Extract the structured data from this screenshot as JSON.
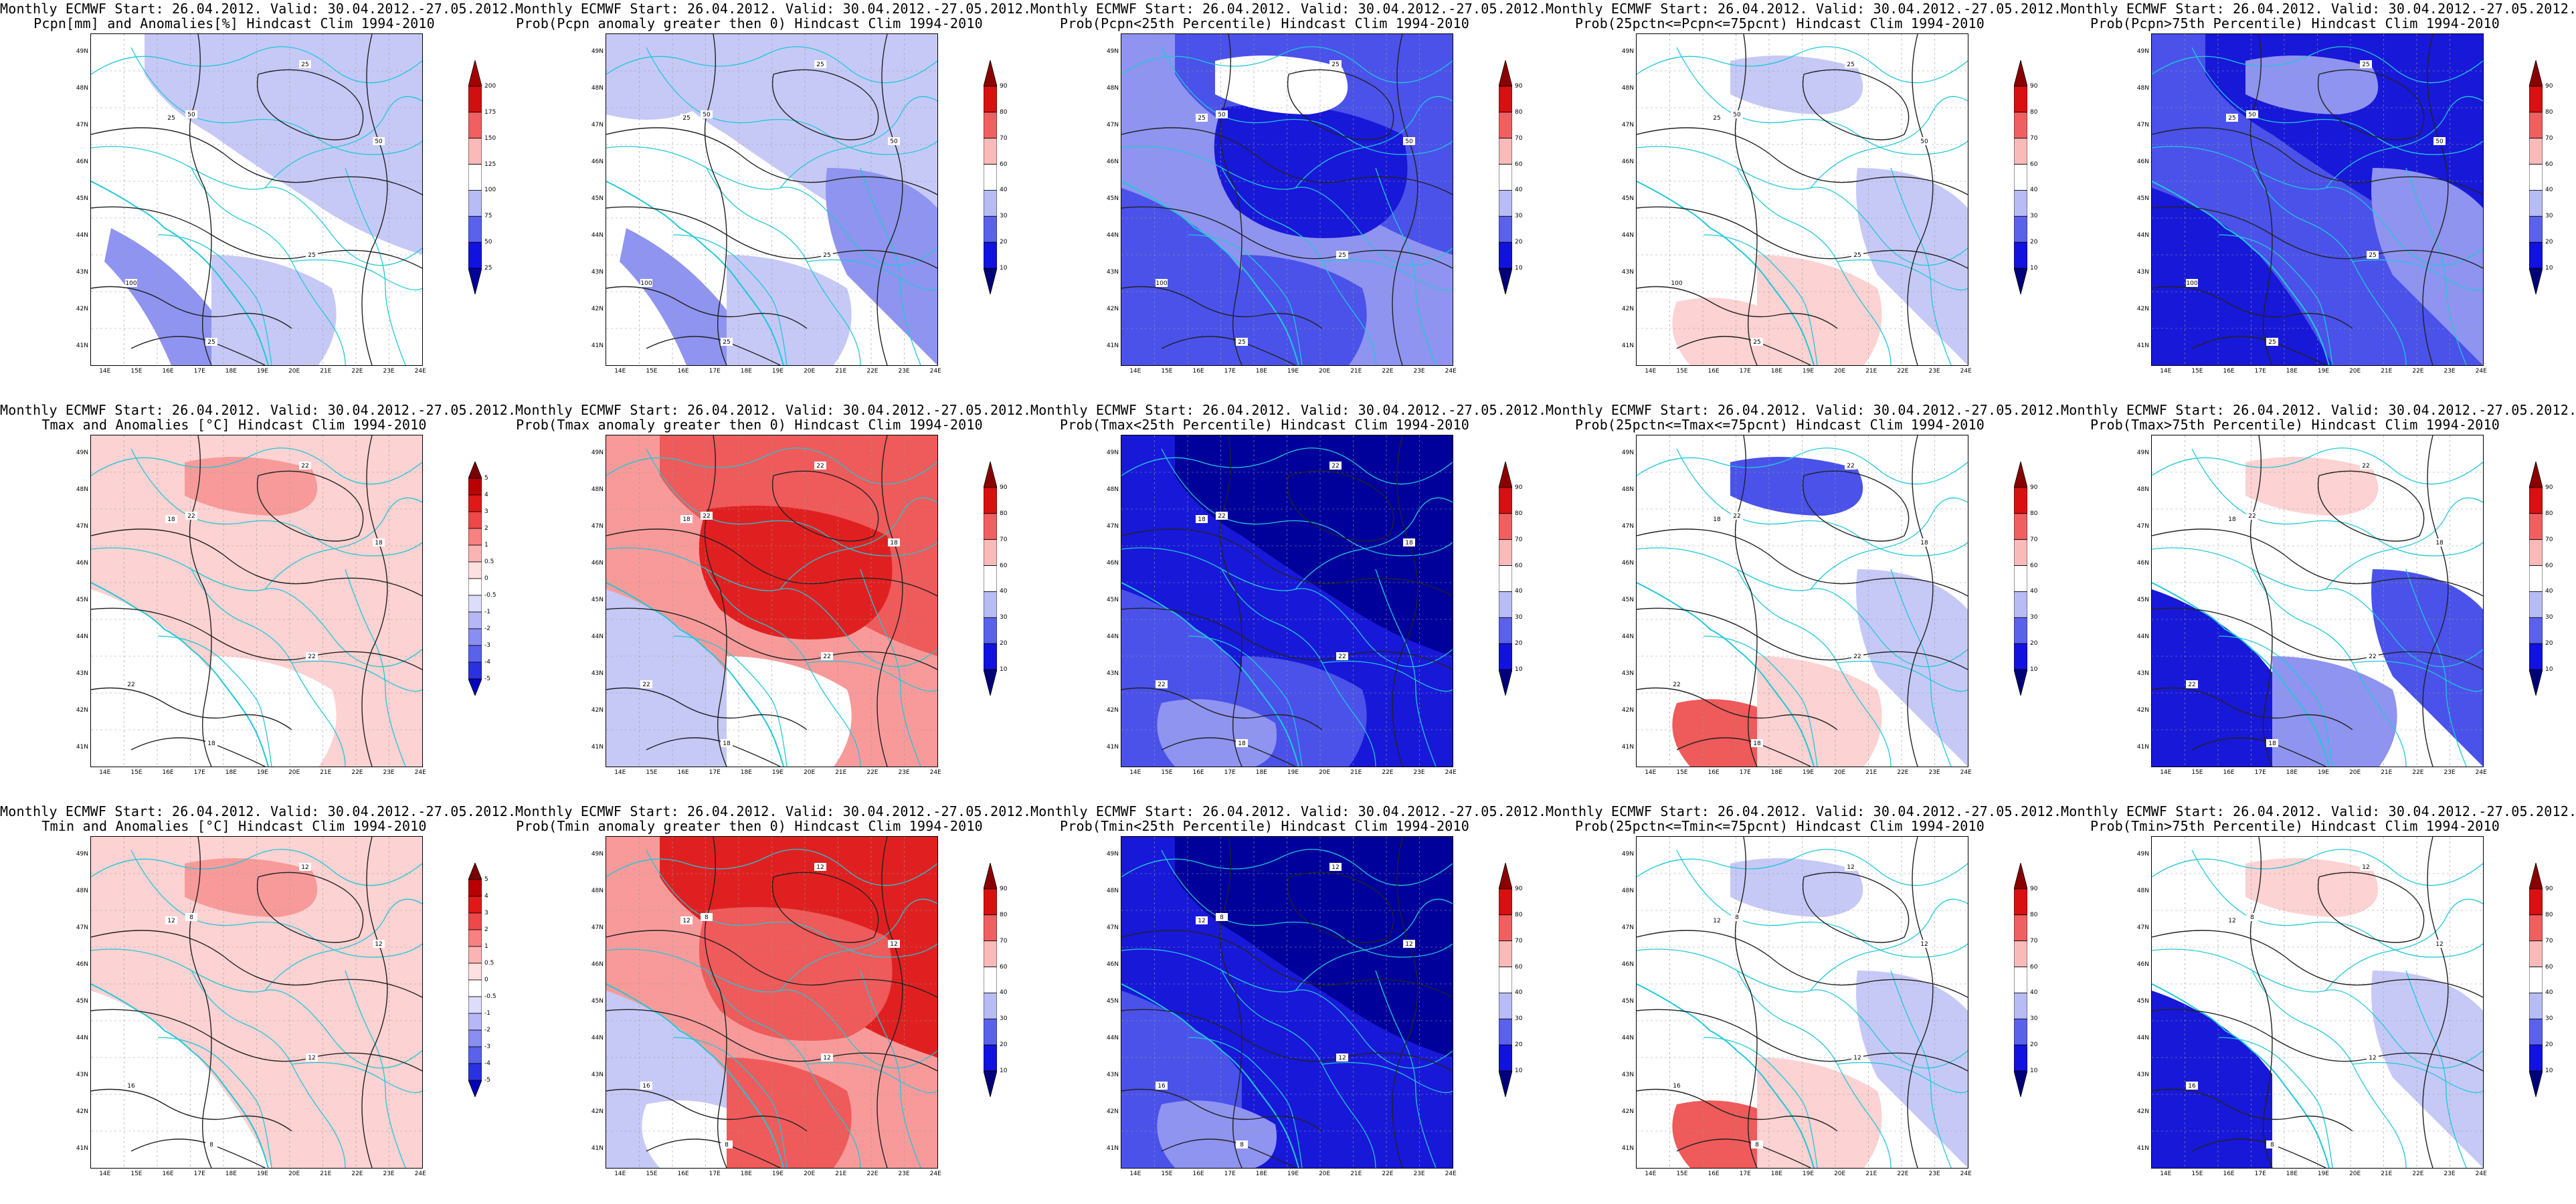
{
  "header_line": "Monthly ECMWF Start: 26.04.2012. Valid: 30.04.2012.-27.05.2012.",
  "lat_labels": [
    "49N",
    "48N",
    "47N",
    "46N",
    "45N",
    "44N",
    "43N",
    "42N",
    "41N"
  ],
  "lon_labels": [
    "14E",
    "15E",
    "16E",
    "17E",
    "18E",
    "19E",
    "20E",
    "21E",
    "22E",
    "23E",
    "24E"
  ],
  "colorbars": {
    "anom_pcpn": {
      "labels": [
        "200",
        "175",
        "150",
        "125",
        "100",
        "75",
        "50",
        "25"
      ],
      "colors": [
        "#a50000",
        "#d01010",
        "#f06060",
        "#fbbaba",
        "#ffffff",
        "#b8bcf5",
        "#5a62ec",
        "#1212e0",
        "#00009a"
      ]
    },
    "anom_temp": {
      "labels": [
        "5",
        "4",
        "3",
        "2",
        "1",
        "0.5",
        "0",
        "-0.5",
        "-1",
        "-2",
        "-3",
        "-4",
        "-5"
      ],
      "colors": [
        "#7a0000",
        "#b80000",
        "#e01818",
        "#f04848",
        "#f78080",
        "#fbb4b4",
        "#fde0e0",
        "#ffffff",
        "#dcdcfb",
        "#b6b8f6",
        "#8a8ef0",
        "#5a62ea",
        "#2a32e0",
        "#0000b8"
      ]
    },
    "prob": {
      "labels": [
        "90",
        "80",
        "70",
        "60",
        "40",
        "30",
        "20",
        "10"
      ],
      "colors": [
        "#8a0000",
        "#d81010",
        "#f06060",
        "#fbbaba",
        "#ffffff",
        "#b8bcf5",
        "#5a62ec",
        "#1212e0",
        "#00007a"
      ]
    }
  },
  "panels": [
    {
      "title2": "Pcpn[mm] and Anomalies[%] Hindcast Clim 1994-2010",
      "bar": "anom_pcpn",
      "scheme": "pcpn_anom",
      "contours": [
        "25",
        "25",
        "50",
        "50",
        "100"
      ]
    },
    {
      "title2": "Prob(Pcpn anomaly greater then 0) Hindcast Clim 1994-2010",
      "bar": "prob",
      "scheme": "pcpn_pos",
      "contours": [
        "25",
        "25",
        "50",
        "50",
        "100"
      ]
    },
    {
      "title2": "Prob(Pcpn<25th Percentile) Hindcast Clim 1994-2010",
      "bar": "prob",
      "scheme": "pcpn_low",
      "contours": [
        "25",
        "25",
        "50",
        "50",
        "100"
      ]
    },
    {
      "title2": "Prob(25pctn<=Pcpn<=75pcnt) Hindcast Clim 1994-2010",
      "bar": "prob",
      "scheme": "pcpn_mid",
      "contours": [
        "25",
        "25",
        "50",
        "50",
        "100"
      ]
    },
    {
      "title2": "Prob(Pcpn>75th Percentile) Hindcast Clim 1994-2010",
      "bar": "prob",
      "scheme": "pcpn_high",
      "contours": [
        "25",
        "25",
        "50",
        "50",
        "100"
      ]
    },
    {
      "title2": "Tmax and Anomalies [°C] Hindcast Clim 1994-2010",
      "bar": "anom_temp",
      "scheme": "tmax_anom",
      "contours": [
        "18",
        "22",
        "22",
        "18",
        "22",
        "22",
        "18"
      ]
    },
    {
      "title2": "Prob(Tmax anomaly greater then 0) Hindcast Clim 1994-2010",
      "bar": "prob",
      "scheme": "tmax_pos",
      "contours": [
        "18",
        "22",
        "22",
        "18",
        "22",
        "22",
        "18"
      ]
    },
    {
      "title2": "Prob(Tmax<25th Percentile) Hindcast Clim 1994-2010",
      "bar": "prob",
      "scheme": "tmax_low",
      "contours": [
        "18",
        "22",
        "22",
        "18",
        "22",
        "22",
        "18"
      ]
    },
    {
      "title2": "Prob(25pctn<=Tmax<=75pcnt) Hindcast Clim 1994-2010",
      "bar": "prob",
      "scheme": "tmax_mid",
      "contours": [
        "18",
        "22",
        "22",
        "18",
        "22",
        "22",
        "18"
      ]
    },
    {
      "title2": "Prob(Tmax>75th Percentile) Hindcast Clim 1994-2010",
      "bar": "prob",
      "scheme": "tmax_high",
      "contours": [
        "18",
        "22",
        "22",
        "18",
        "22",
        "22",
        "18"
      ]
    },
    {
      "title2": "Tmin and Anomalies [°C] Hindcast Clim 1994-2010",
      "bar": "anom_temp",
      "scheme": "tmin_anom",
      "contours": [
        "12",
        "12",
        "8",
        "12",
        "16",
        "12",
        "8"
      ]
    },
    {
      "title2": "Prob(Tmin anomaly greater then 0) Hindcast Clim 1994-2010",
      "bar": "prob",
      "scheme": "tmin_pos",
      "contours": [
        "12",
        "12",
        "8",
        "12",
        "16",
        "12",
        "8"
      ]
    },
    {
      "title2": "Prob(Tmin<25th Percentile) Hindcast Clim 1994-2010",
      "bar": "prob",
      "scheme": "tmin_low",
      "contours": [
        "12",
        "12",
        "8",
        "12",
        "16",
        "12",
        "8"
      ]
    },
    {
      "title2": "Prob(25pctn<=Tmin<=75pcnt) Hindcast Clim 1994-2010",
      "bar": "prob",
      "scheme": "tmin_mid",
      "contours": [
        "12",
        "12",
        "8",
        "12",
        "16",
        "12",
        "8"
      ]
    },
    {
      "title2": "Prob(Tmin>75th Percentile) Hindcast Clim 1994-2010",
      "bar": "prob",
      "scheme": "tmin_high",
      "contours": [
        "12",
        "12",
        "8",
        "12",
        "16",
        "12",
        "8"
      ]
    }
  ]
}
